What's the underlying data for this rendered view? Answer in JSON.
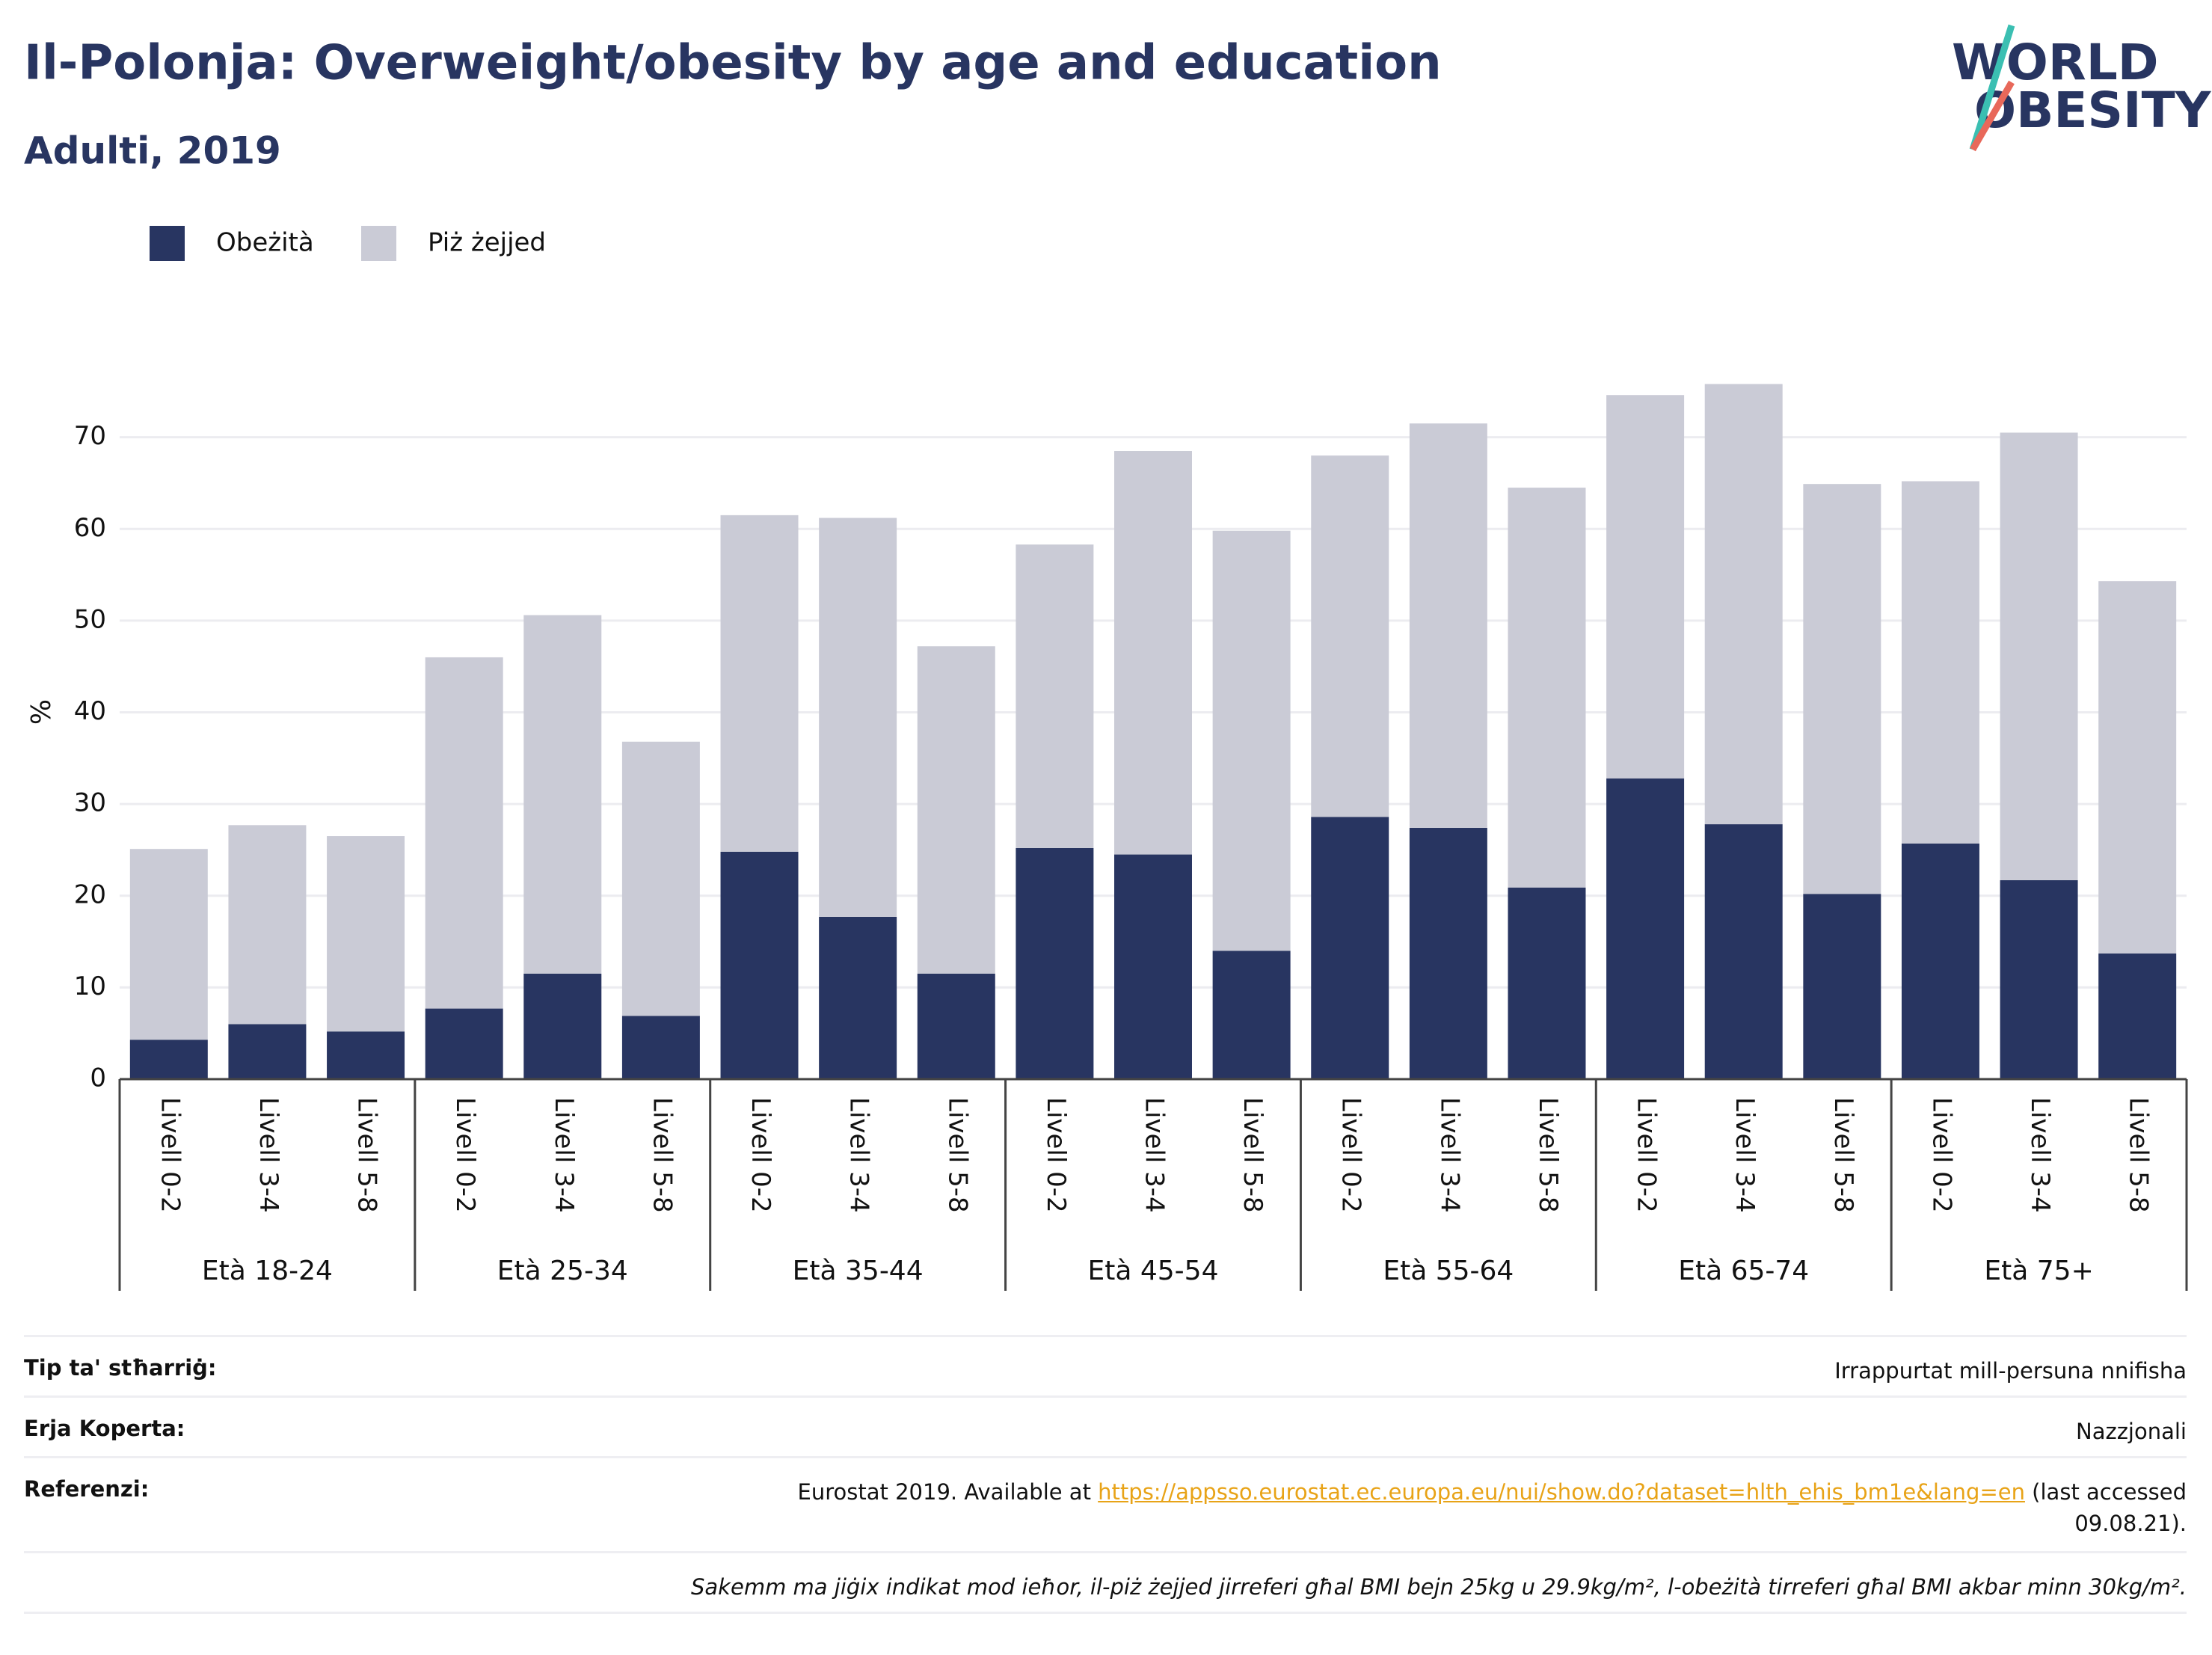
{
  "chart_data": {
    "type": "stacked_bar",
    "title": "Il-Polonja: Overweight/obesity by age and education",
    "subtitle": "Adulti, 2019",
    "y_label": "%",
    "categories": [
      "Livell 0-2",
      "Livell 3-4",
      "Livell 5-8",
      "Livell 0-2",
      "Livell 3-4",
      "Livell 5-8",
      "Livell 0-2",
      "Livell 3-4",
      "Livell 5-8",
      "Livell 0-2",
      "Livell 3-4",
      "Livell 5-8",
      "Livell 0-2",
      "Livell 3-4",
      "Livell 5-8",
      "Livell 0-2",
      "Livell 3-4",
      "Livell 5-8",
      "Livell 0-2",
      "Livell 3-4",
      "Livell 5-8"
    ],
    "groups": [
      "Età 18-24",
      "Età 25-34",
      "Età 35-44",
      "Età 45-54",
      "Età 55-64",
      "Età 65-74",
      "Età 75+"
    ],
    "series": [
      {
        "name": "Obeżità",
        "color": "#283561",
        "values": [
          4.3,
          6.0,
          5.2,
          7.7,
          11.5,
          6.9,
          24.8,
          17.7,
          11.5,
          25.2,
          24.5,
          14.0,
          28.6,
          27.4,
          20.9,
          32.8,
          27.8,
          20.2,
          25.7,
          21.7,
          13.7
        ]
      },
      {
        "name": "Piż żejjed",
        "color": "#cacbd6",
        "values": [
          20.8,
          21.7,
          21.3,
          38.3,
          39.1,
          29.9,
          36.7,
          43.5,
          35.7,
          33.1,
          44.0,
          45.8,
          39.4,
          44.1,
          43.6,
          41.8,
          48.0,
          44.7,
          39.5,
          48.8,
          40.6
        ]
      }
    ],
    "ylim": [
      0,
      80
    ],
    "yticks": [
      0,
      10,
      20,
      30,
      40,
      50,
      60,
      70
    ],
    "grid": true,
    "legend": "top-left"
  },
  "logo": {
    "line1": "WORLD",
    "line2": "OBESITY"
  },
  "footer": {
    "survey_type": {
      "label": "Tip ta' stħarriġ:",
      "value": "Irrappurtat mill-persuna nnifisha"
    },
    "coverage": {
      "label": "Erja Koperta:",
      "value": "Nazzjonali"
    },
    "reference": {
      "label": "Referenzi:",
      "before": "Eurostat 2019. Available at ",
      "link": "https://appsso.eurostat.ec.europa.eu/nui/show.do?dataset=hlth_ehis_bm1e&lang=en",
      "after": " (last accessed 09.08.21)."
    },
    "note": "Sakemm ma jiġix indikat mod ieħor, il-piż żejjed jirreferi għal BMI bejn 25kg u 29.9kg/m², l-obeżità tirreferi għal BMI akbar minn 30kg/m²."
  }
}
